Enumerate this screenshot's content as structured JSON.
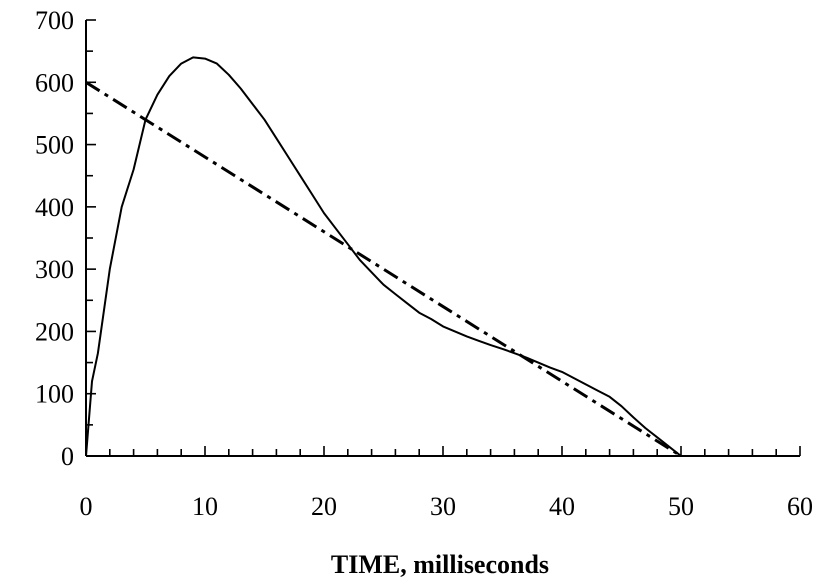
{
  "chart_data": {
    "type": "line",
    "title": "",
    "xlabel": "TIME, milliseconds",
    "ylabel": "",
    "xlim": [
      0,
      60
    ],
    "ylim": [
      0,
      700
    ],
    "x_ticks": [
      0,
      10,
      20,
      30,
      40,
      50,
      60
    ],
    "y_ticks": [
      0,
      100,
      200,
      300,
      400,
      500,
      600,
      700
    ],
    "x_minor_step": 2,
    "y_minor_step": 50,
    "grid": false,
    "legend": "none",
    "series": [
      {
        "style": "solid",
        "color": "#000000",
        "x": [
          0,
          0.5,
          1,
          2,
          3,
          4,
          5,
          6,
          7,
          8,
          9,
          10,
          11,
          12,
          13,
          14,
          15,
          16,
          17,
          18,
          19,
          20,
          21,
          22,
          23,
          24,
          25,
          26,
          27,
          28,
          29,
          30,
          31,
          32,
          33,
          34,
          35,
          36,
          37,
          38,
          39,
          40,
          41,
          42,
          43,
          44,
          45,
          46,
          47,
          48,
          49,
          50
        ],
        "y": [
          0,
          120,
          165,
          300,
          400,
          460,
          540,
          580,
          610,
          630,
          640,
          638,
          630,
          612,
          590,
          565,
          540,
          510,
          480,
          450,
          420,
          390,
          365,
          340,
          315,
          295,
          275,
          260,
          245,
          230,
          220,
          208,
          200,
          192,
          185,
          178,
          172,
          165,
          158,
          150,
          142,
          135,
          125,
          115,
          105,
          95,
          80,
          62,
          45,
          30,
          15,
          0
        ]
      },
      {
        "style": "dashed",
        "color": "#000000",
        "x": [
          0,
          50
        ],
        "y": [
          600,
          0
        ]
      }
    ]
  }
}
